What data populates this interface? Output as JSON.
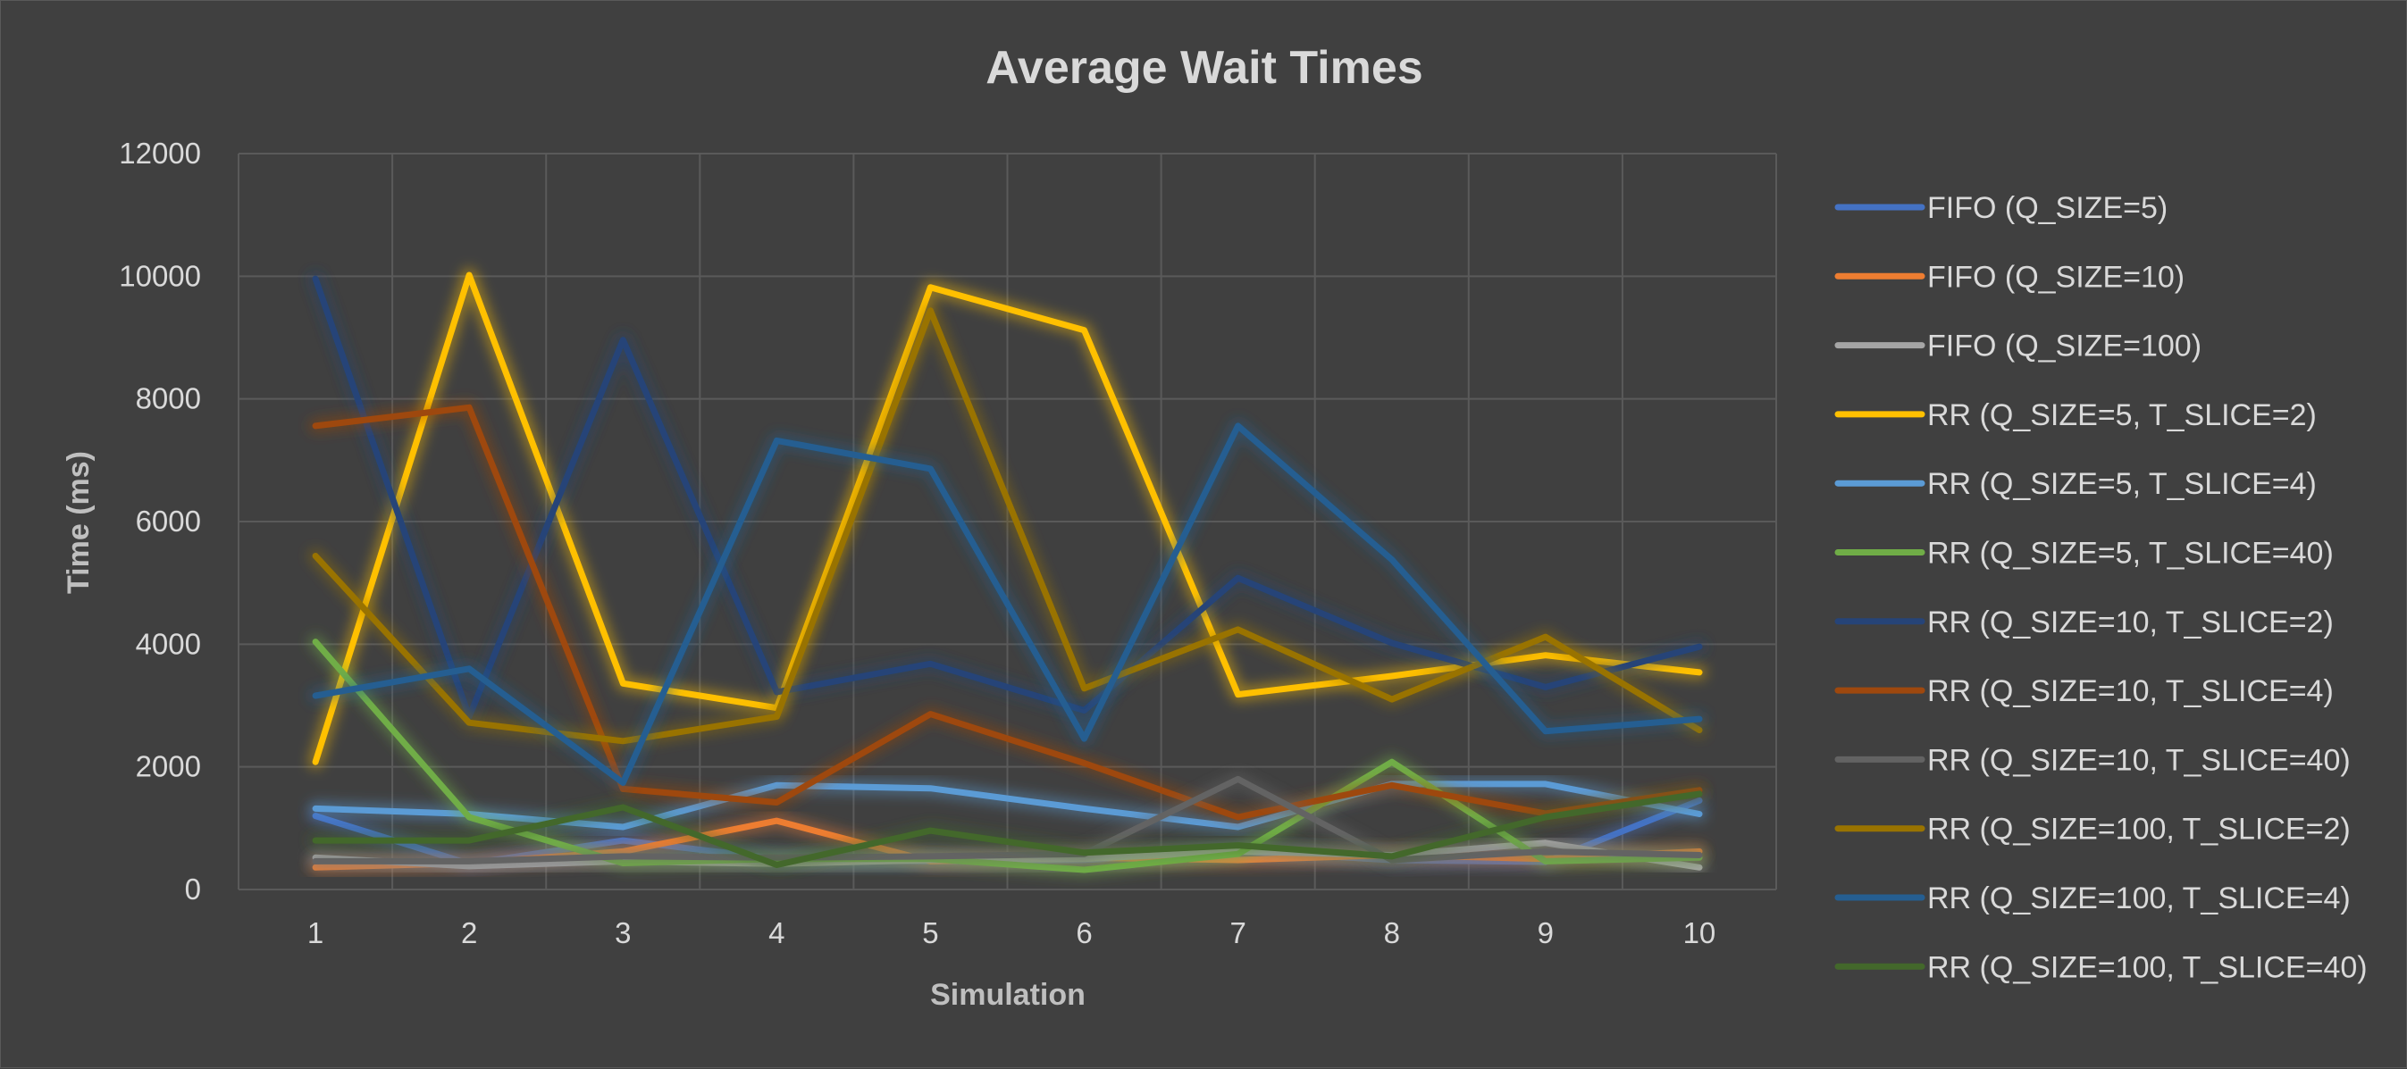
{
  "chart_data": {
    "type": "line",
    "title": "Average Wait Times",
    "xlabel": "Simulation",
    "ylabel": "Time (ms)",
    "x": [
      1,
      2,
      3,
      4,
      5,
      6,
      7,
      8,
      9,
      10
    ],
    "ylim": [
      0,
      12000
    ],
    "yticks": [
      0,
      2000,
      4000,
      6000,
      8000,
      10000,
      12000
    ],
    "grid": true,
    "legend_position": "right",
    "background": "#404040",
    "series": [
      {
        "name": "FIFO (Q_SIZE=5)",
        "color": "#4472c4",
        "values": [
          1200,
          420,
          800,
          500,
          460,
          480,
          620,
          480,
          450,
          1450
        ]
      },
      {
        "name": "FIFO (Q_SIZE=10)",
        "color": "#ed7d31",
        "values": [
          360,
          430,
          620,
          1120,
          460,
          520,
          480,
          560,
          500,
          620
        ]
      },
      {
        "name": "FIFO (Q_SIZE=100)",
        "color": "#a5a5a5",
        "values": [
          520,
          380,
          460,
          420,
          480,
          500,
          620,
          560,
          760,
          360
        ]
      },
      {
        "name": "RR (Q_SIZE=5, T_SLICE=2)",
        "color": "#ffc000",
        "values": [
          2080,
          10020,
          3360,
          2960,
          9820,
          9120,
          3180,
          3480,
          3820,
          3540
        ]
      },
      {
        "name": "RR (Q_SIZE=5, T_SLICE=4)",
        "color": "#5b9bd5",
        "values": [
          1320,
          1230,
          1020,
          1700,
          1650,
          1320,
          1020,
          1720,
          1720,
          1230
        ]
      },
      {
        "name": "RR (Q_SIZE=5, T_SLICE=40)",
        "color": "#70ad47",
        "values": [
          4040,
          1180,
          430,
          500,
          500,
          320,
          580,
          2080,
          460,
          520
        ]
      },
      {
        "name": "RR (Q_SIZE=10, T_SLICE=2)",
        "color": "#264478",
        "values": [
          9960,
          2820,
          8960,
          3220,
          3680,
          2920,
          5080,
          4020,
          3300,
          3960
        ]
      },
      {
        "name": "RR (Q_SIZE=10, T_SLICE=4)",
        "color": "#9e480e",
        "values": [
          7560,
          7860,
          1640,
          1420,
          2860,
          2060,
          1180,
          1700,
          1240,
          1620
        ]
      },
      {
        "name": "RR (Q_SIZE=10, T_SLICE=40)",
        "color": "#636363",
        "values": [
          460,
          460,
          540,
          520,
          540,
          580,
          1800,
          480,
          620,
          560
        ]
      },
      {
        "name": "RR (Q_SIZE=100, T_SLICE=2)",
        "color": "#997300",
        "values": [
          5440,
          2720,
          2420,
          2820,
          9440,
          3280,
          4240,
          3100,
          4120,
          2600
        ]
      },
      {
        "name": "RR (Q_SIZE=100, T_SLICE=4)",
        "color": "#255e91",
        "values": [
          3160,
          3600,
          1740,
          7320,
          6860,
          2460,
          7560,
          5380,
          2580,
          2780
        ]
      },
      {
        "name": "RR (Q_SIZE=100, T_SLICE=40)",
        "color": "#43682b",
        "values": [
          800,
          800,
          1340,
          400,
          960,
          600,
          720,
          540,
          1180,
          1560
        ]
      }
    ]
  }
}
